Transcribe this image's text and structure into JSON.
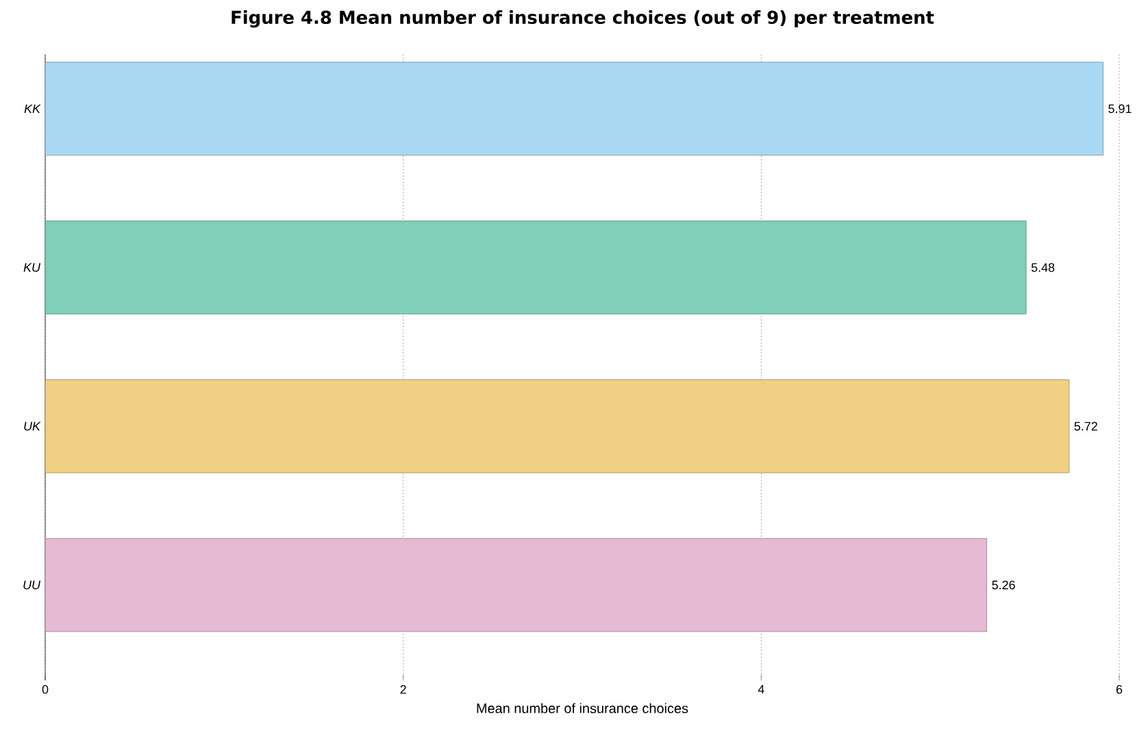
{
  "chart_data": {
    "type": "bar",
    "orientation": "horizontal",
    "title": "Figure 4.8 Mean number of insurance choices (out of 9) per treatment",
    "xlabel": "Mean number of insurance choices",
    "categories": [
      "KK",
      "KU",
      "UK",
      "UU"
    ],
    "values": [
      5.91,
      5.48,
      5.72,
      5.26
    ],
    "colors": [
      "#a9d9f2",
      "#80cfb8",
      "#f0d082",
      "#e4bbd3"
    ],
    "xlim": [
      0,
      6
    ],
    "xticks": [
      0,
      2,
      4,
      6
    ],
    "grid": "x",
    "data_labels": true
  }
}
